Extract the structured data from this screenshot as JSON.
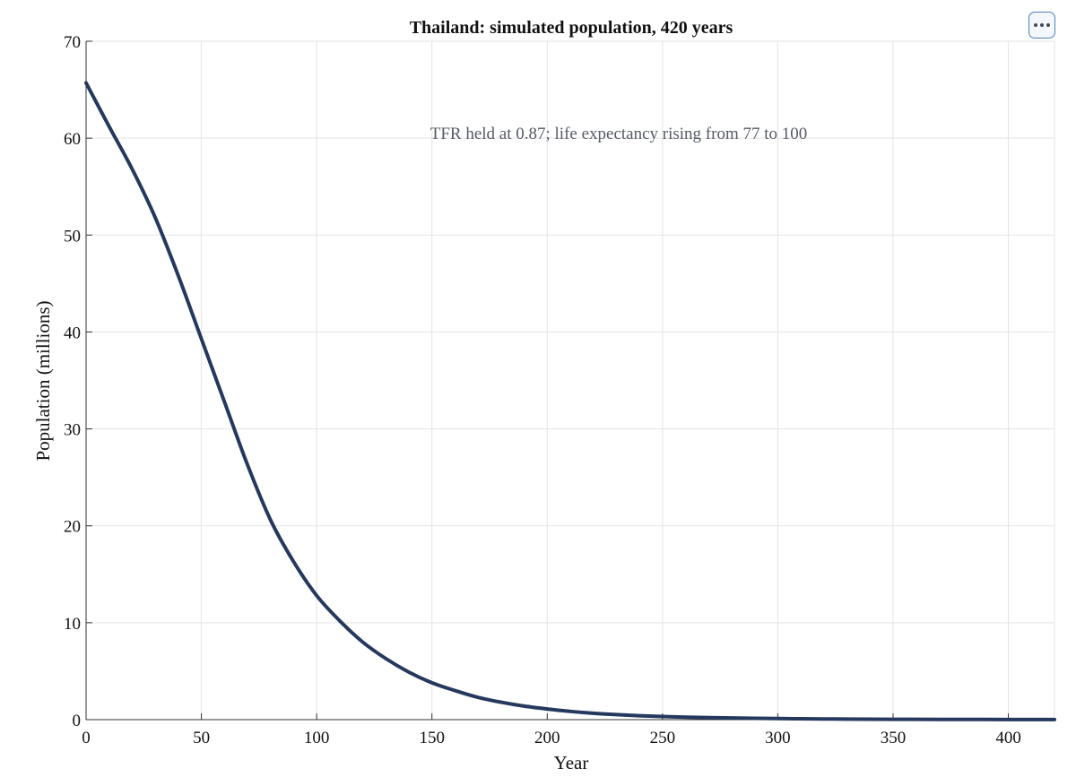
{
  "toolbar": {
    "menu_icon": "more-horizontal-icon"
  },
  "chart_data": {
    "type": "line",
    "title": "Thailand: simulated population, 420 years",
    "xlabel": "Year",
    "ylabel": "Population (millions)",
    "annotation": "TFR held at 0.87; life expectancy rising from 77 to 100",
    "xlim": [
      0,
      420
    ],
    "ylim": [
      0,
      70
    ],
    "xticks": [
      0,
      50,
      100,
      150,
      200,
      250,
      300,
      350,
      400
    ],
    "yticks": [
      0,
      10,
      20,
      30,
      40,
      50,
      60,
      70
    ],
    "grid": true,
    "series": [
      {
        "color": "#25385d",
        "x": [
          0,
          10,
          20,
          30,
          40,
          50,
          60,
          70,
          80,
          90,
          100,
          110,
          120,
          130,
          140,
          150,
          160,
          170,
          180,
          190,
          200,
          210,
          220,
          230,
          240,
          250,
          260,
          270,
          280,
          290,
          300,
          310,
          320,
          330,
          340,
          350,
          360,
          370,
          380,
          390,
          400,
          410,
          420
        ],
        "y": [
          65.7,
          61.2,
          56.8,
          51.8,
          45.8,
          39.3,
          32.8,
          26.3,
          20.6,
          16.3,
          12.8,
          10.2,
          8.0,
          6.3,
          4.9,
          3.8,
          3.0,
          2.3,
          1.8,
          1.4,
          1.1,
          0.85,
          0.66,
          0.52,
          0.41,
          0.32,
          0.26,
          0.21,
          0.17,
          0.14,
          0.11,
          0.09,
          0.075,
          0.06,
          0.05,
          0.04,
          0.033,
          0.027,
          0.022,
          0.018,
          0.015,
          0.012,
          0.01
        ]
      }
    ]
  }
}
